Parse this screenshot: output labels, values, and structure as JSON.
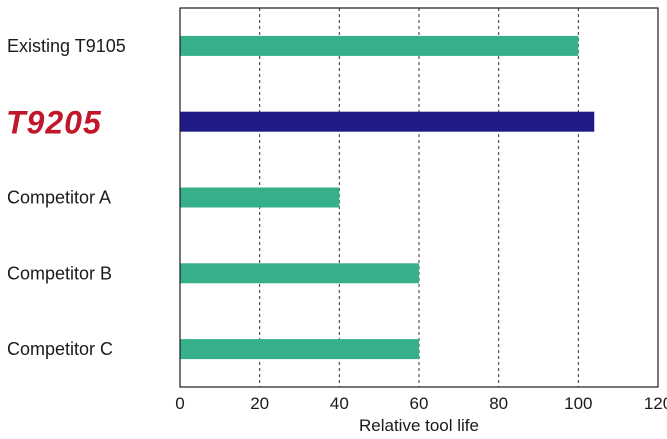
{
  "chart_data": {
    "type": "bar",
    "orientation": "horizontal",
    "categories": [
      "Existing T9105",
      "T9205",
      "Competitor A",
      "Competitor B",
      "Competitor C"
    ],
    "values": [
      100,
      104,
      40,
      60,
      60
    ],
    "highlight_category": "T9205",
    "xlabel": "Relative tool life",
    "xlim": [
      0,
      120
    ],
    "xticks": [
      0,
      20,
      40,
      60,
      80,
      100,
      120
    ],
    "grid": "vertical dashed",
    "colors": {
      "default_bar": "#36b08a",
      "highlight_bar": "#1f1b86",
      "logo": "#c0182a"
    }
  }
}
